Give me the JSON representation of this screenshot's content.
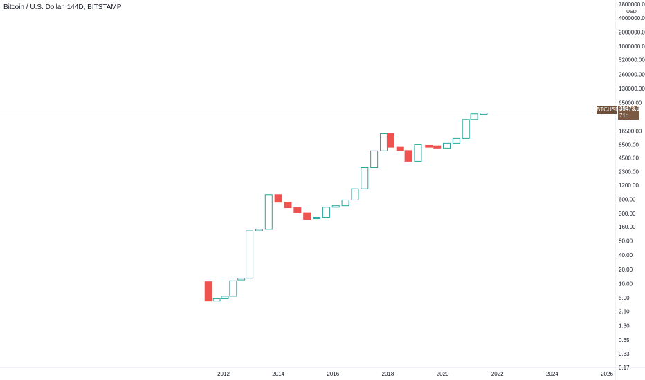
{
  "header": {
    "title": "Bitcoin / U.S. Dollar, 144D, BITSTAMP"
  },
  "axis": {
    "currency": "USD",
    "y_ticks": [
      "7800000.00",
      "4000000.00",
      "2000000.00",
      "1000000.00",
      "520000.00",
      "260000.00",
      "130000.00",
      "65000.00",
      "16500.00",
      "8500.00",
      "4500.00",
      "2300.00",
      "1200.00",
      "600.00",
      "300.00",
      "160.00",
      "80.00",
      "40.00",
      "20.00",
      "10.00",
      "5.00",
      "2.60",
      "1.30",
      "0.65",
      "0.33",
      "0.17"
    ],
    "x_ticks": [
      "2012",
      "2014",
      "2016",
      "2018",
      "2020",
      "2022",
      "2024",
      "2026"
    ]
  },
  "last_price": {
    "symbol": "BTCUSD",
    "value": "39473.66",
    "countdown": "71d 20h"
  },
  "colors": {
    "up": "#26a69a",
    "down": "#ef5350",
    "grid": "#e0e3eb",
    "text": "#131722"
  },
  "chart_data": {
    "type": "candlestick",
    "scale": "log",
    "ylim": [
      0.17,
      7800000
    ],
    "x_tick_values": [
      2012,
      2014,
      2016,
      2018,
      2020,
      2022,
      2024,
      2026
    ],
    "candles": [
      {
        "t": 2011.45,
        "o": 11.0,
        "c": 4.3,
        "dir": "down"
      },
      {
        "t": 2011.75,
        "o": 4.3,
        "c": 4.8,
        "dir": "up"
      },
      {
        "t": 2012.05,
        "o": 4.8,
        "c": 5.4,
        "dir": "up"
      },
      {
        "t": 2012.35,
        "o": 5.4,
        "c": 11.5,
        "dir": "up"
      },
      {
        "t": 2012.65,
        "o": 12.0,
        "c": 13.0,
        "dir": "up"
      },
      {
        "t": 2012.95,
        "o": 13.0,
        "c": 130,
        "dir": "up"
      },
      {
        "t": 2013.3,
        "o": 130,
        "c": 140,
        "dir": "up"
      },
      {
        "t": 2013.65,
        "o": 140,
        "c": 750,
        "dir": "up"
      },
      {
        "t": 2014.0,
        "o": 750,
        "c": 520,
        "dir": "down"
      },
      {
        "t": 2014.35,
        "o": 520,
        "c": 400,
        "dir": "down"
      },
      {
        "t": 2014.7,
        "o": 400,
        "c": 310,
        "dir": "down"
      },
      {
        "t": 2015.05,
        "o": 310,
        "c": 225,
        "dir": "down"
      },
      {
        "t": 2015.4,
        "o": 235,
        "c": 250,
        "dir": "up"
      },
      {
        "t": 2015.75,
        "o": 250,
        "c": 410,
        "dir": "up"
      },
      {
        "t": 2016.1,
        "o": 410,
        "c": 440,
        "dir": "up"
      },
      {
        "t": 2016.45,
        "o": 440,
        "c": 580,
        "dir": "up"
      },
      {
        "t": 2016.8,
        "o": 580,
        "c": 1000,
        "dir": "up"
      },
      {
        "t": 2017.15,
        "o": 1000,
        "c": 2800,
        "dir": "up"
      },
      {
        "t": 2017.5,
        "o": 2800,
        "c": 6300,
        "dir": "up"
      },
      {
        "t": 2017.85,
        "o": 6300,
        "c": 14500,
        "dir": "up"
      },
      {
        "t": 2018.1,
        "o": 14500,
        "c": 7500,
        "dir": "down"
      },
      {
        "t": 2018.45,
        "o": 7500,
        "c": 6400,
        "dir": "down"
      },
      {
        "t": 2018.75,
        "o": 6400,
        "c": 3800,
        "dir": "down"
      },
      {
        "t": 2019.1,
        "o": 3800,
        "c": 8500,
        "dir": "up"
      },
      {
        "t": 2019.5,
        "o": 8200,
        "c": 7500,
        "dir": "down"
      },
      {
        "t": 2019.8,
        "o": 8000,
        "c": 7200,
        "dir": "down"
      },
      {
        "t": 2020.15,
        "o": 7200,
        "c": 9100,
        "dir": "up"
      },
      {
        "t": 2020.5,
        "o": 9100,
        "c": 11500,
        "dir": "up"
      },
      {
        "t": 2020.85,
        "o": 11500,
        "c": 29000,
        "dir": "up"
      },
      {
        "t": 2021.15,
        "o": 29000,
        "c": 38000,
        "dir": "up"
      },
      {
        "t": 2021.5,
        "o": 38500,
        "c": 39473.66,
        "dir": "up"
      }
    ]
  }
}
